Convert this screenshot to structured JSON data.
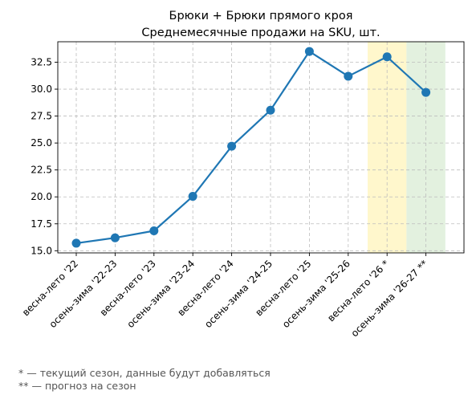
{
  "chart_data": {
    "type": "line",
    "title": "Брюки + Брюки прямого кроя",
    "subtitle": "Среднемесячные продажи на SKU, шт.",
    "xlabel": "",
    "ylabel": "",
    "categories": [
      "весна-лето '22",
      "осень-зима '22-23",
      "весна-лето '23",
      "осень-зима '23-24",
      "весна-лето '24",
      "осень-зима '24-25",
      "весна-лето '25",
      "осень-зима '25-26",
      "весна-лето '26 *",
      "осень-зима '26-27 **"
    ],
    "series": [
      {
        "values": [
          15.7,
          16.2,
          16.85,
          20.05,
          24.7,
          28.05,
          33.5,
          31.2,
          33.0,
          29.7
        ]
      }
    ],
    "ylim": [
      14.8,
      34.4
    ],
    "yticks": [
      "15.0",
      "17.5",
      "20.0",
      "22.5",
      "25.0",
      "27.5",
      "30.0",
      "32.5"
    ],
    "grid": true,
    "highlights": [
      {
        "category_index": 8,
        "color": "#fff7cc",
        "meaning": "current season"
      },
      {
        "category_index": 9,
        "color": "#e3f1df",
        "meaning": "forecast"
      }
    ],
    "line_color": "#1f77b4"
  },
  "footnotes": [
    "* — текущий сезон, данные будут добавляться",
    "** — прогноз на сезон"
  ]
}
